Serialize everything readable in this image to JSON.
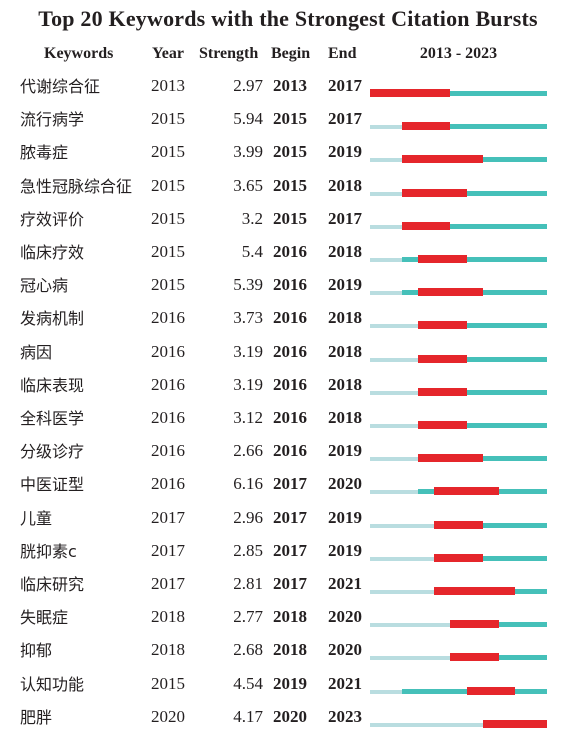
{
  "title": "Top 20 Keywords with the Strongest Citation Bursts",
  "headers": {
    "keywords": "Keywords",
    "year": "Year",
    "strength": "Strength",
    "begin": "Begin",
    "end": "End",
    "range": "2013 - 2023"
  },
  "colors": {
    "before_appearance": "#b9dde0",
    "after_appearance": "#45c0b9",
    "burst": "#e5262b"
  },
  "chart_data": {
    "type": "table",
    "x_range": [
      2013,
      2023
    ],
    "columns": [
      "Keywords",
      "Year",
      "Strength",
      "Begin",
      "End"
    ],
    "rows": [
      {
        "keyword": "代谢综合征",
        "year": "2013",
        "strength": "2.97",
        "begin": "2013",
        "end": "2017"
      },
      {
        "keyword": "流行病学",
        "year": "2015",
        "strength": "5.94",
        "begin": "2015",
        "end": "2017"
      },
      {
        "keyword": "脓毒症",
        "year": "2015",
        "strength": "3.99",
        "begin": "2015",
        "end": "2019"
      },
      {
        "keyword": "急性冠脉综合征",
        "year": "2015",
        "strength": "3.65",
        "begin": "2015",
        "end": "2018"
      },
      {
        "keyword": "疗效评价",
        "year": "2015",
        "strength": "3.2",
        "begin": "2015",
        "end": "2017"
      },
      {
        "keyword": "临床疗效",
        "year": "2015",
        "strength": "5.4",
        "begin": "2016",
        "end": "2018"
      },
      {
        "keyword": "冠心病",
        "year": "2015",
        "strength": "5.39",
        "begin": "2016",
        "end": "2019"
      },
      {
        "keyword": "发病机制",
        "year": "2016",
        "strength": "3.73",
        "begin": "2016",
        "end": "2018"
      },
      {
        "keyword": "病因",
        "year": "2016",
        "strength": "3.19",
        "begin": "2016",
        "end": "2018"
      },
      {
        "keyword": "临床表现",
        "year": "2016",
        "strength": "3.19",
        "begin": "2016",
        "end": "2018"
      },
      {
        "keyword": "全科医学",
        "year": "2016",
        "strength": "3.12",
        "begin": "2016",
        "end": "2018"
      },
      {
        "keyword": "分级诊疗",
        "year": "2016",
        "strength": "2.66",
        "begin": "2016",
        "end": "2019"
      },
      {
        "keyword": "中医证型",
        "year": "2016",
        "strength": "6.16",
        "begin": "2017",
        "end": "2020"
      },
      {
        "keyword": "儿童",
        "year": "2017",
        "strength": "2.96",
        "begin": "2017",
        "end": "2019"
      },
      {
        "keyword": "胱抑素c",
        "year": "2017",
        "strength": "2.85",
        "begin": "2017",
        "end": "2019"
      },
      {
        "keyword": "临床研究",
        "year": "2017",
        "strength": "2.81",
        "begin": "2017",
        "end": "2021"
      },
      {
        "keyword": "失眠症",
        "year": "2018",
        "strength": "2.77",
        "begin": "2018",
        "end": "2020"
      },
      {
        "keyword": "抑郁",
        "year": "2018",
        "strength": "2.68",
        "begin": "2018",
        "end": "2020"
      },
      {
        "keyword": "认知功能",
        "year": "2015",
        "strength": "4.54",
        "begin": "2019",
        "end": "2021"
      },
      {
        "keyword": "肥胖",
        "year": "2020",
        "strength": "4.17",
        "begin": "2020",
        "end": "2023"
      }
    ]
  }
}
